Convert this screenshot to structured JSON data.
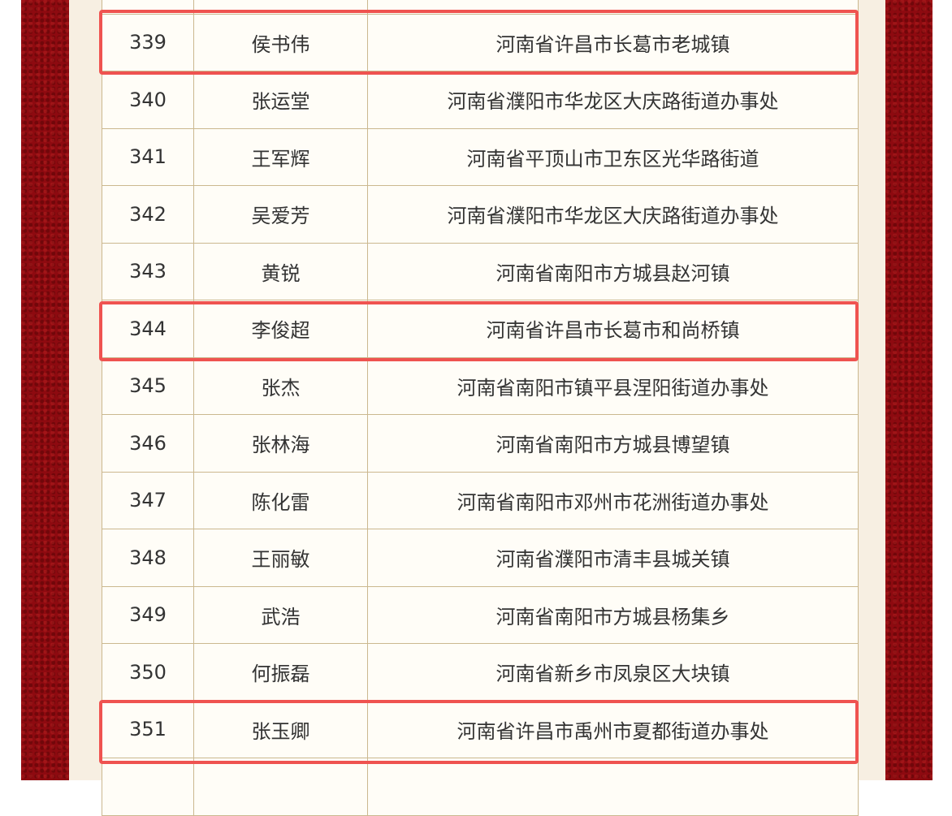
{
  "colors": {
    "highlight": "#ef5350",
    "background_red": "#8e0a10",
    "panel": "#f7efe2"
  },
  "rows": [
    {
      "no": "",
      "name": "",
      "address": ""
    },
    {
      "no": "339",
      "name": "侯书伟",
      "address": "河南省许昌市长葛市老城镇",
      "highlighted": true
    },
    {
      "no": "340",
      "name": "张运堂",
      "address": "河南省濮阳市华龙区大庆路街道办事处"
    },
    {
      "no": "341",
      "name": "王军辉",
      "address": "河南省平顶山市卫东区光华路街道"
    },
    {
      "no": "342",
      "name": "吴爱芳",
      "address": "河南省濮阳市华龙区大庆路街道办事处"
    },
    {
      "no": "343",
      "name": "黄锐",
      "address": "河南省南阳市方城县赵河镇"
    },
    {
      "no": "344",
      "name": "李俊超",
      "address": "河南省许昌市长葛市和尚桥镇",
      "highlighted": true
    },
    {
      "no": "345",
      "name": "张杰",
      "address": "河南省南阳市镇平县涅阳街道办事处"
    },
    {
      "no": "346",
      "name": "张林海",
      "address": "河南省南阳市方城县博望镇"
    },
    {
      "no": "347",
      "name": "陈化雷",
      "address": "河南省南阳市邓州市花洲街道办事处"
    },
    {
      "no": "348",
      "name": "王丽敏",
      "address": "河南省濮阳市清丰县城关镇"
    },
    {
      "no": "349",
      "name": "武浩",
      "address": "河南省南阳市方城县杨集乡"
    },
    {
      "no": "350",
      "name": "何振磊",
      "address": "河南省新乡市凤泉区大块镇"
    },
    {
      "no": "351",
      "name": "张玉卿",
      "address": "河南省许昌市禹州市夏都街道办事处",
      "highlighted": true
    },
    {
      "no": "",
      "name": "",
      "address": ""
    }
  ]
}
